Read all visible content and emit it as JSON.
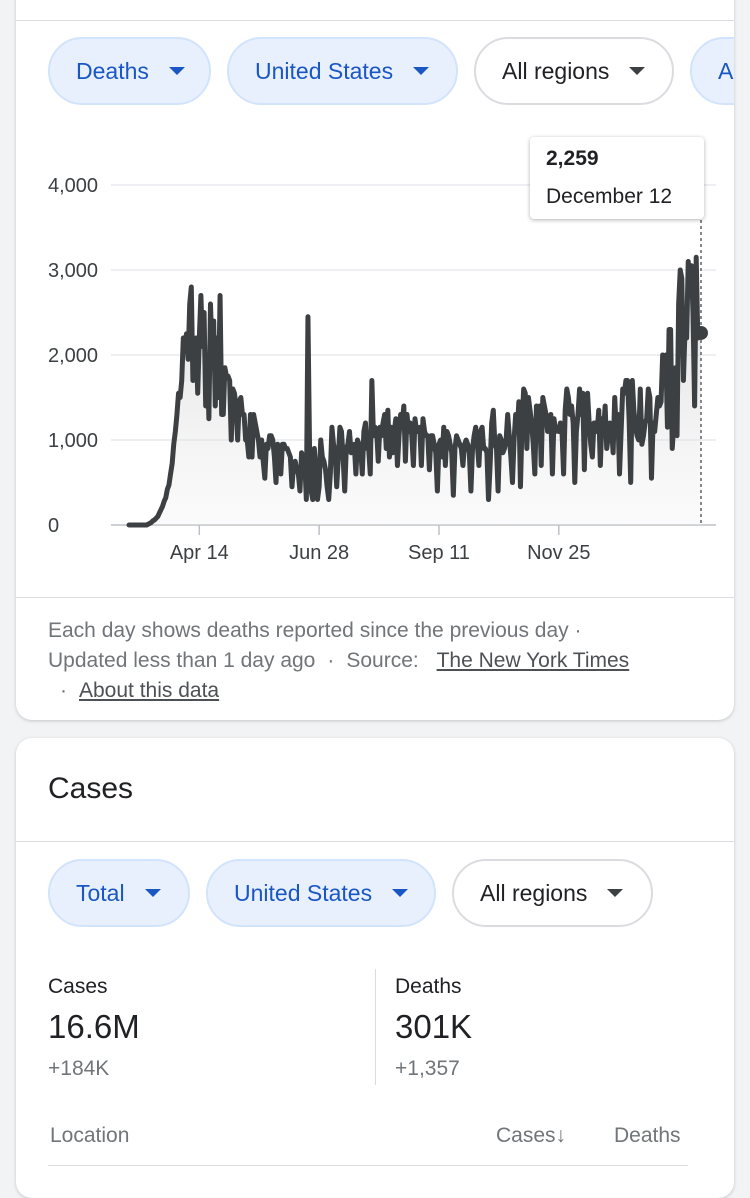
{
  "deaths_card": {
    "chips": [
      {
        "label": "Deaths",
        "style": "blue"
      },
      {
        "label": "United States",
        "style": "blue"
      },
      {
        "label": "All regions",
        "style": "outline"
      },
      {
        "label": "Al",
        "style": "blue"
      }
    ],
    "tooltip": {
      "value": "2,259",
      "date": "December 12"
    },
    "footnote": {
      "text1": "Each day shows deaths reported since the previous day",
      "updated": "Updated less than 1 day ago",
      "source_label": "Source:",
      "source_link": "The New York Times",
      "about_link": "About this data",
      "separator": "·"
    }
  },
  "chart_data": {
    "type": "area",
    "title": "",
    "xlabel": "",
    "ylabel": "",
    "ylim": [
      0,
      4000
    ],
    "yticks": [
      0,
      1000,
      2000,
      3000,
      4000
    ],
    "ytick_labels": [
      "0",
      "1,000",
      "2,000",
      "3,000",
      "4,000"
    ],
    "xticks": [
      "Apr 14",
      "Jun 28",
      "Sep 11",
      "Nov 25"
    ],
    "x_start": "Mar 1",
    "x_end": "Dec 12",
    "grid": true,
    "highlight": {
      "date": "December 12",
      "value": 2259
    },
    "series": [
      {
        "values": [
          0,
          0,
          0,
          0,
          0,
          0,
          0,
          0,
          0,
          0,
          0,
          0,
          10,
          20,
          30,
          50,
          60,
          80,
          100,
          140,
          180,
          220,
          280,
          320,
          420,
          470,
          600,
          720,
          950,
          1100,
          1300,
          1550,
          1500,
          1700,
          2200,
          2150,
          2250,
          1950,
          2600,
          2800,
          1700,
          1800,
          2200,
          1550,
          2200,
          2700,
          2100,
          2500,
          1400,
          2000,
          1250,
          2600,
          2000,
          2400,
          1400,
          2200,
          1500,
          2700,
          1300,
          1300,
          1850,
          1750,
          1750,
          1700,
          1000,
          1600,
          1550,
          1400,
          1000,
          1450,
          1500,
          1300,
          1300,
          1000,
          1000,
          800,
          1300,
          800,
          1300,
          1200,
          1100,
          1000,
          800,
          1000,
          750,
          550,
          950,
          900,
          1050,
          1050,
          1000,
          800,
          500,
          950,
          800,
          600,
          950,
          950,
          900,
          900,
          850,
          800,
          450,
          700,
          750,
          650,
          600,
          400,
          850,
          800,
          750,
          300,
          2450,
          900,
          400,
          300,
          900,
          650,
          300,
          450,
          1000,
          800,
          750,
          650,
          450,
          300,
          600,
          1150,
          950,
          850,
          450,
          800,
          1150,
          1100,
          800,
          400,
          900,
          950,
          1100,
          850,
          900,
          950,
          600,
          1000,
          950,
          900,
          600,
          1100,
          1200,
          900,
          900,
          600,
          1700,
          1050,
          1150,
          1100,
          750,
          1150,
          1050,
          1200,
          1300,
          900,
          1350,
          800,
          1150,
          850,
          1100,
          1250,
          700,
          1050,
          1300,
          1200,
          1400,
          750,
          1300,
          1100,
          1200,
          1050,
          700,
          1250,
          1100,
          1100,
          1150,
          700,
          1250,
          1100,
          1050,
          1050,
          650,
          1050,
          1050,
          950,
          850,
          400,
          950,
          1000,
          800,
          1150,
          700,
          1100,
          1050,
          950,
          850,
          350,
          900,
          1050,
          1000,
          950,
          900,
          700,
          950,
          1000,
          950,
          850,
          400,
          900,
          1050,
          1150,
          950,
          700,
          1100,
          1150,
          900,
          900,
          850,
          300,
          700,
          1200,
          1350,
          950,
          900,
          400,
          1050,
          1000,
          850,
          900,
          1000,
          1300,
          1050,
          800,
          500,
          1000,
          1300,
          1100,
          1450,
          450,
          1200,
          1600,
          1550,
          900,
          1500,
          1350,
          1200,
          950,
          600,
          1400,
          1250,
          1400,
          700,
          1500,
          1400,
          1300,
          1100,
          1150,
          1300,
          600,
          1250,
          1100,
          1150,
          1100,
          1200,
          1100,
          600,
          1350,
          1600,
          1500,
          1300,
          1400,
          1200,
          500,
          1100,
          1300,
          1600,
          1300,
          1550,
          650,
          1500,
          1550,
          1200,
          950,
          800,
          1200,
          1200,
          1100,
          1350,
          700,
          1250,
          1100,
          1400,
          900,
          1050,
          1200,
          1150,
          850,
          1500,
          1100,
          1300,
          600,
          1100,
          1600,
          1550,
          1700,
          1700,
          1250,
          500,
          1700,
          1350,
          1150,
          1050,
          1000,
          1600,
          950,
          1050,
          1200,
          1250,
          1600,
          1500,
          550,
          1200,
          1100,
          1300,
          1500,
          1400,
          1450,
          2000,
          1950,
          2000,
          1150,
          2300,
          2300,
          900,
          1200,
          1850,
          1050,
          2600,
          3000,
          2900,
          1700,
          2300,
          2200,
          3100,
          2900,
          3050,
          2500,
          1400,
          3150,
          2200,
          2250,
          2259
        ]
      }
    ]
  },
  "cases_card": {
    "title": "Cases",
    "chips": [
      {
        "label": "Total",
        "style": "blue"
      },
      {
        "label": "United States",
        "style": "blue"
      },
      {
        "label": "All regions",
        "style": "outline"
      }
    ],
    "stats": [
      {
        "label": "Cases",
        "value": "16.6M",
        "delta": "+184K"
      },
      {
        "label": "Deaths",
        "value": "301K",
        "delta": "+1,357"
      }
    ],
    "table_headers": {
      "location": "Location",
      "cases": "Cases",
      "sort_arrow": "↓",
      "deaths": "Deaths"
    }
  },
  "colors": {
    "chip_blue_bg": "#e8f0fe",
    "chip_blue_text": "#1a56c4",
    "line": "#3c4043",
    "link": "#4d5156"
  }
}
